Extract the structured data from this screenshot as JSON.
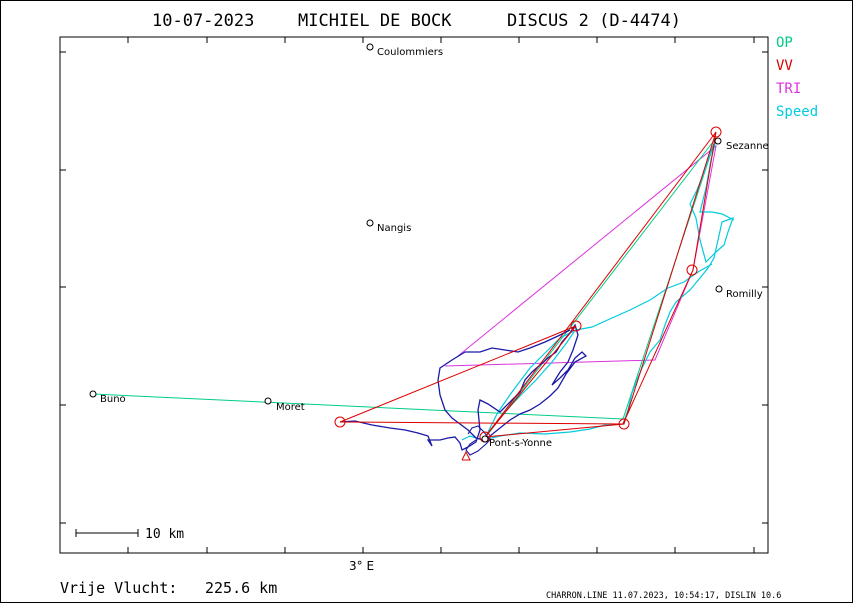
{
  "title": {
    "date": "10-07-2023",
    "pilot": "MICHIEL DE BOCK",
    "glider": "DISCUS 2 (D-4474)"
  },
  "legend": [
    {
      "label": "OP",
      "color": "#00cc88"
    },
    {
      "label": "VV",
      "color": "#dd0000"
    },
    {
      "label": "TRI",
      "color": "#dd33dd"
    },
    {
      "label": "Speed",
      "color": "#00ccdd"
    }
  ],
  "towns": [
    {
      "name": "Coulommiers"
    },
    {
      "name": "Nangis"
    },
    {
      "name": "Sezanne"
    },
    {
      "name": "Romilly"
    },
    {
      "name": "Buno"
    },
    {
      "name": "Moret"
    },
    {
      "name": "Pont-s-Yonne"
    }
  ],
  "axis": {
    "x_tick_label": "3° E"
  },
  "scale_bar": {
    "label": "10 km"
  },
  "result": {
    "label": "Vrije Vlucht:",
    "value": "225.6 km"
  },
  "footer": "CHARRON.LINE 11.07.2023, 10:54:17, DISLIN 10.6",
  "colors": {
    "track": "#1a1aa8",
    "speed": "#00ccdd",
    "op": "#00cc88",
    "vv": "#dd0000",
    "tri": "#dd33dd"
  }
}
